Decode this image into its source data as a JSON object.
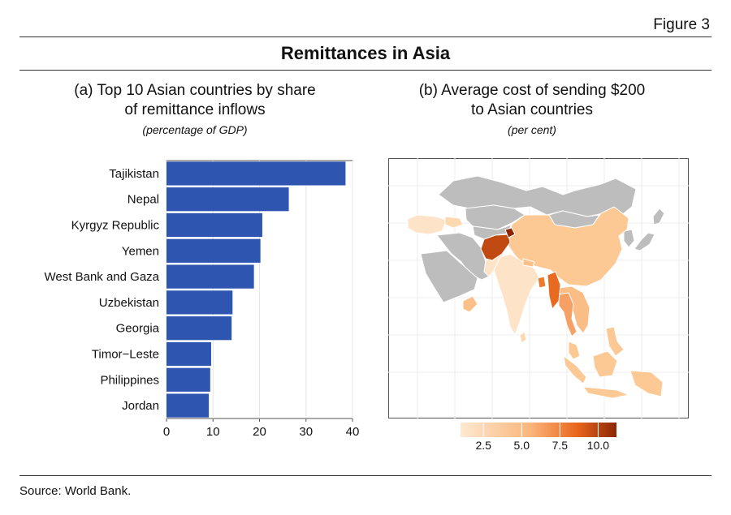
{
  "figure_label": "Figure 3",
  "title": "Remittances in Asia",
  "panel_a": {
    "subtitle_line1": "(a) Top 10 Asian countries by share",
    "subtitle_line2": "of remittance inflows",
    "unit": "(percentage of GDP)"
  },
  "panel_b": {
    "subtitle_line1": "(b) Average cost of sending $200",
    "subtitle_line2": "to Asian countries",
    "unit": "(per cent)"
  },
  "source": "Source: World Bank.",
  "colors": {
    "bar": "#2e55b0",
    "no_data": "#bdbdbd",
    "scale_low": "#fde9d2",
    "scale_high": "#8b2605"
  },
  "chart_data": [
    {
      "type": "bar",
      "orientation": "horizontal",
      "categories": [
        "Tajikistan",
        "Nepal",
        "Kyrgyz Republic",
        "Yemen",
        "West Bank and Gaza",
        "Uzbekistan",
        "Georgia",
        "Timor−Leste",
        "Philippines",
        "Jordan"
      ],
      "values": [
        38.5,
        26.3,
        20.6,
        20.2,
        18.8,
        14.2,
        14.0,
        9.6,
        9.4,
        9.1
      ],
      "xlim": [
        0,
        40
      ],
      "xticks": [
        0,
        10,
        20,
        30,
        40
      ],
      "grid": true
    },
    {
      "type": "map",
      "region": "Asia",
      "legend": {
        "min": 1.0,
        "max": 11.2,
        "ticks": [
          "2.5",
          "5.0",
          "7.5",
          "10.0"
        ],
        "position": "bottom"
      }
    }
  ]
}
